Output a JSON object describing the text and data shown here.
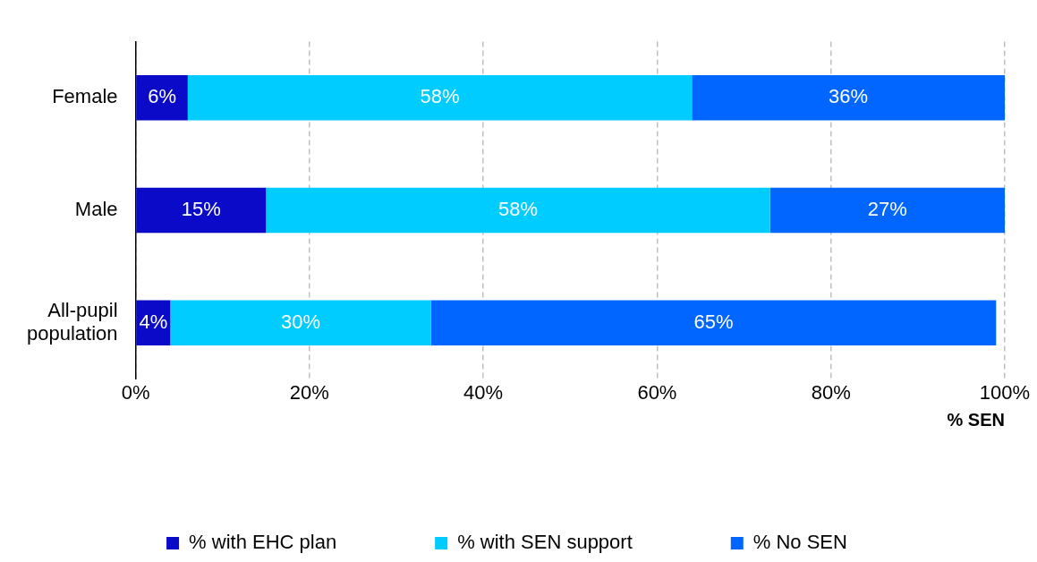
{
  "chart_data": {
    "type": "bar",
    "orientation": "horizontal",
    "stacked": true,
    "categories": [
      "Female",
      "Male",
      "All-pupil population"
    ],
    "series": [
      {
        "name": "% with EHC plan",
        "color": "#0a0ac8",
        "values": [
          6,
          15,
          4
        ],
        "value_labels": [
          "6%",
          "15%",
          "4%"
        ]
      },
      {
        "name": "% with SEN support",
        "color": "#00ccff",
        "values": [
          58,
          58,
          30
        ],
        "value_labels": [
          "58%",
          "58%",
          "30%"
        ]
      },
      {
        "name": "% No SEN",
        "color": "#0066ff",
        "values": [
          36,
          27,
          65
        ],
        "value_labels": [
          "36%",
          "27%",
          "65%"
        ]
      }
    ],
    "xlabel": "% SEN",
    "xlim": [
      0,
      100
    ],
    "xticks": [
      {
        "value": 0,
        "label": "0%"
      },
      {
        "value": 20,
        "label": "20%"
      },
      {
        "value": 40,
        "label": "40%"
      },
      {
        "value": 60,
        "label": "60%"
      },
      {
        "value": 80,
        "label": "80%"
      },
      {
        "value": 100,
        "label": "100%"
      }
    ],
    "grid": "x",
    "legend": "bottom"
  }
}
